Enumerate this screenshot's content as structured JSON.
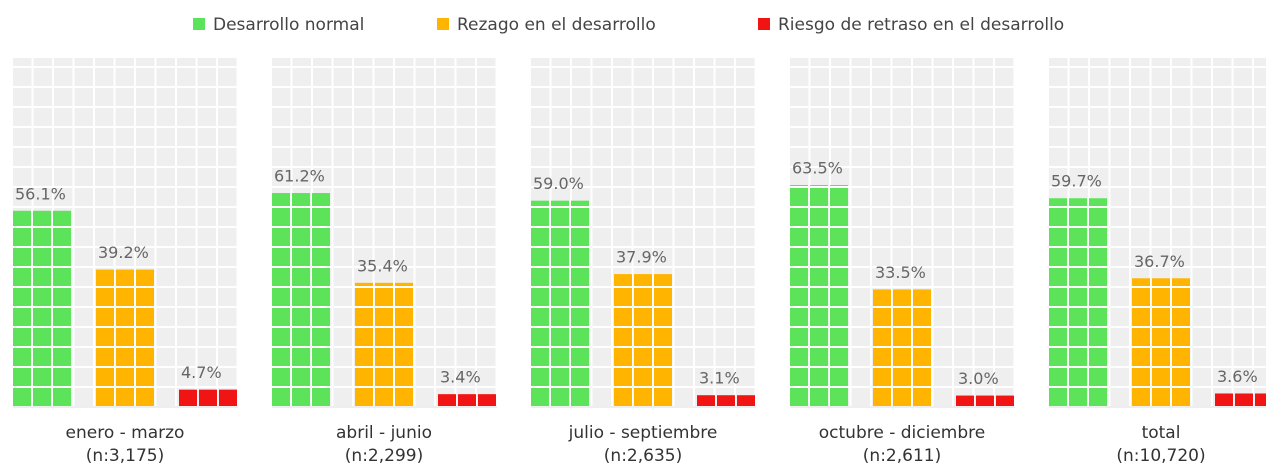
{
  "chart_data": {
    "type": "bar",
    "categories": [
      "enero - marzo",
      "abril - junio",
      "julio - septiembre",
      "octubre - diciembre",
      "total"
    ],
    "category_notes": [
      "(n:3,175)",
      "(n:2,299)",
      "(n:2,635)",
      "(n:2,611)",
      "(n:10,720)"
    ],
    "series": [
      {
        "name": "Desarrollo normal",
        "color": "#5de35a",
        "values": [
          56.1,
          61.2,
          59.0,
          63.5,
          59.7
        ],
        "value_labels": [
          "56.1%",
          "61.2%",
          "59.0%",
          "63.5%",
          "59.7%"
        ]
      },
      {
        "name": "Rezago en el desarrollo",
        "color": "#ffb400",
        "values": [
          39.2,
          35.4,
          37.9,
          33.5,
          36.7
        ],
        "value_labels": [
          "39.2%",
          "35.4%",
          "37.9%",
          "33.5%",
          "36.7%"
        ]
      },
      {
        "name": "Riesgo de retraso en el desarrollo",
        "color": "#f01414",
        "values": [
          4.7,
          3.4,
          3.1,
          3.0,
          3.6
        ],
        "value_labels": [
          "4.7%",
          "3.4%",
          "3.1%",
          "3.0%",
          "3.6%"
        ]
      }
    ],
    "ylim": [
      0,
      100
    ]
  }
}
